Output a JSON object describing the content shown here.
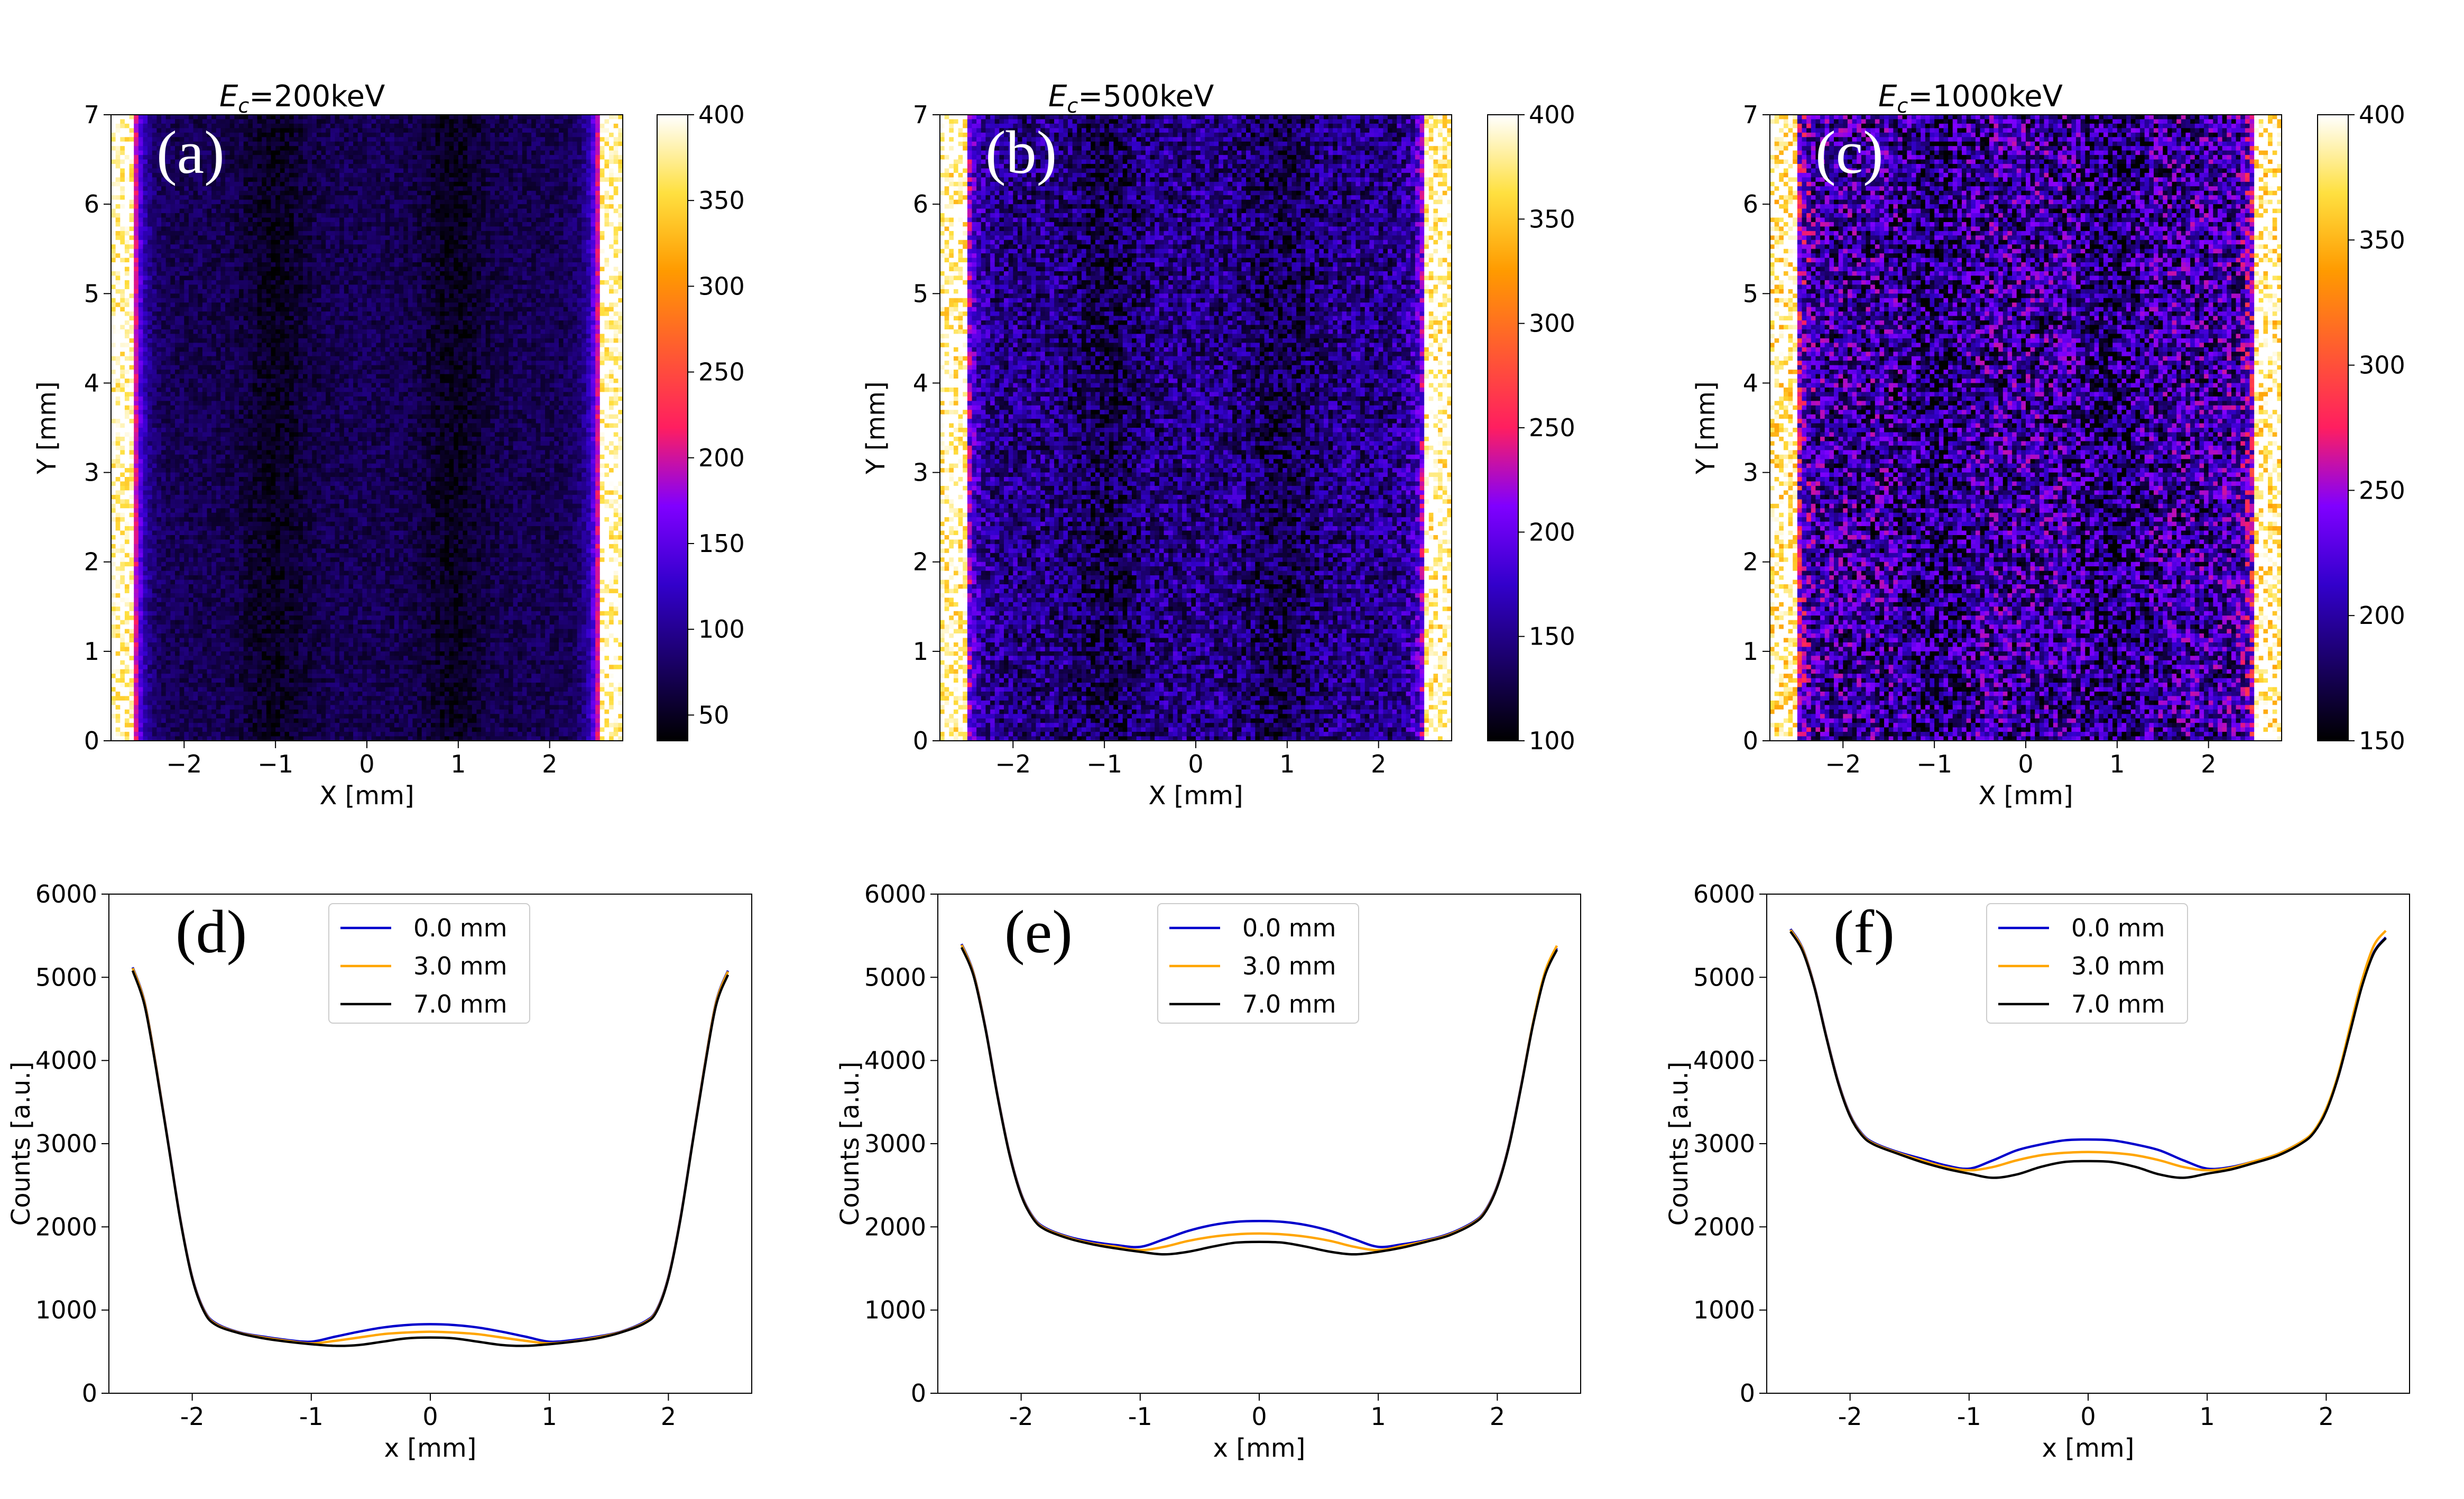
{
  "chart_data": [
    {
      "type": "heatmap",
      "panel_label": "(a)",
      "title_prefix": "E",
      "title_sub": "c",
      "title_rest": "=200keV",
      "xlabel": "X [mm]",
      "ylabel": "Y [mm]",
      "xlim": [
        -2.8,
        2.8
      ],
      "ylim": [
        0,
        7
      ],
      "xticks": [
        -2,
        -1,
        0,
        1,
        2
      ],
      "xtick_labels": [
        "−2",
        "−1",
        "0",
        "1",
        "2"
      ],
      "yticks": [
        0,
        1,
        2,
        3,
        4,
        5,
        6,
        7
      ],
      "ytick_labels": [
        "0",
        "1",
        "2",
        "3",
        "4",
        "5",
        "6",
        "7"
      ],
      "colorbar": {
        "cmap": "gnuplot2",
        "vmin": 35,
        "vmax": 400,
        "ticks": [
          50,
          100,
          150,
          200,
          250,
          300,
          350,
          400
        ],
        "tick_labels": [
          "50",
          "100",
          "150",
          "200",
          "250",
          "300",
          "350",
          "400"
        ]
      },
      "edge_x": 2.55,
      "center_level": 72,
      "dip_level": 50,
      "edge_peak": 240,
      "seed": 11
    },
    {
      "type": "heatmap",
      "panel_label": "(b)",
      "title_prefix": "E",
      "title_sub": "c",
      "title_rest": "=500keV",
      "xlabel": "X [mm]",
      "ylabel": "Y [mm]",
      "xlim": [
        -2.8,
        2.8
      ],
      "ylim": [
        0,
        7
      ],
      "xticks": [
        -2,
        -1,
        0,
        1,
        2
      ],
      "xtick_labels": [
        "−2",
        "−1",
        "0",
        "1",
        "2"
      ],
      "yticks": [
        0,
        1,
        2,
        3,
        4,
        5,
        6,
        7
      ],
      "ytick_labels": [
        "0",
        "1",
        "2",
        "3",
        "4",
        "5",
        "6",
        "7"
      ],
      "colorbar": {
        "cmap": "gnuplot2",
        "vmin": 100,
        "vmax": 400,
        "ticks": [
          100,
          150,
          200,
          250,
          300,
          350,
          400
        ],
        "tick_labels": [
          "100",
          "150",
          "200",
          "250",
          "300",
          "350",
          "400"
        ]
      },
      "edge_x": 2.5,
      "center_level": 150,
      "dip_level": 128,
      "edge_peak": 230,
      "seed": 23
    },
    {
      "type": "heatmap",
      "panel_label": "(c)",
      "title_prefix": "E",
      "title_sub": "c",
      "title_rest": "=1000keV",
      "xlabel": "X [mm]",
      "ylabel": "Y [mm]",
      "xlim": [
        -2.8,
        2.8
      ],
      "ylim": [
        0,
        7
      ],
      "xticks": [
        -2,
        -1,
        0,
        1,
        2
      ],
      "xtick_labels": [
        "−2",
        "−1",
        "0",
        "1",
        "2"
      ],
      "yticks": [
        0,
        1,
        2,
        3,
        4,
        5,
        6,
        7
      ],
      "ytick_labels": [
        "0",
        "1",
        "2",
        "3",
        "4",
        "5",
        "6",
        "7"
      ],
      "colorbar": {
        "cmap": "gnuplot2",
        "vmin": 150,
        "vmax": 400,
        "ticks": [
          150,
          200,
          250,
          300,
          350,
          400
        ],
        "tick_labels": [
          "150",
          "200",
          "250",
          "300",
          "350",
          "400"
        ]
      },
      "edge_x": 2.5,
      "center_level": 205,
      "dip_level": 185,
      "edge_peak": 265,
      "seed": 37
    },
    {
      "type": "line",
      "panel_label": "(d)",
      "xlabel": "x [mm]",
      "ylabel": "Counts [a.u.]",
      "xlim": [
        -2.7,
        2.7
      ],
      "ylim": [
        0,
        6000
      ],
      "xticks": [
        -2,
        -1,
        0,
        1,
        2
      ],
      "xtick_labels": [
        "-2",
        "-1",
        "0",
        "1",
        "2"
      ],
      "yticks": [
        0,
        1000,
        2000,
        3000,
        4000,
        5000,
        6000
      ],
      "ytick_labels": [
        "0",
        "1000",
        "2000",
        "3000",
        "4000",
        "5000",
        "6000"
      ],
      "legend_position": "top-center",
      "x": [
        -2.5,
        -2.4,
        -2.3,
        -2.2,
        -2.1,
        -2.0,
        -1.9,
        -1.8,
        -1.6,
        -1.4,
        -1.2,
        -1.0,
        -0.8,
        -0.6,
        -0.4,
        -0.2,
        0.0,
        0.2,
        0.4,
        0.6,
        0.8,
        1.0,
        1.2,
        1.4,
        1.6,
        1.8,
        1.9,
        2.0,
        2.1,
        2.2,
        2.3,
        2.4,
        2.5
      ],
      "series": [
        {
          "name": "0.0 mm",
          "color": "#0000cc",
          "values": [
            5120,
            4700,
            3900,
            3000,
            2100,
            1400,
            1000,
            840,
            730,
            680,
            640,
            620,
            680,
            740,
            790,
            820,
            830,
            820,
            790,
            740,
            680,
            620,
            640,
            680,
            740,
            860,
            1000,
            1400,
            2100,
            3000,
            3900,
            4700,
            5080
          ]
        },
        {
          "name": "3.0 mm",
          "color": "#ffa500",
          "values": [
            5110,
            4690,
            3890,
            2990,
            2090,
            1390,
            990,
            830,
            725,
            670,
            630,
            600,
            630,
            670,
            710,
            730,
            740,
            730,
            710,
            670,
            630,
            600,
            625,
            670,
            735,
            850,
            990,
            1390,
            2090,
            2990,
            3890,
            4690,
            5070
          ]
        },
        {
          "name": "7.0 mm",
          "color": "#000000",
          "values": [
            5080,
            4660,
            3870,
            2980,
            2080,
            1380,
            980,
            820,
            720,
            660,
            620,
            590,
            570,
            580,
            620,
            660,
            670,
            660,
            620,
            580,
            570,
            590,
            620,
            660,
            730,
            840,
            980,
            1380,
            2080,
            2980,
            3870,
            4660,
            5030
          ]
        }
      ]
    },
    {
      "type": "line",
      "panel_label": "(e)",
      "xlabel": "x [mm]",
      "ylabel": "Counts [a.u.]",
      "xlim": [
        -2.7,
        2.7
      ],
      "ylim": [
        0,
        6000
      ],
      "xticks": [
        -2,
        -1,
        0,
        1,
        2
      ],
      "xtick_labels": [
        "-2",
        "-1",
        "0",
        "1",
        "2"
      ],
      "yticks": [
        0,
        1000,
        2000,
        3000,
        4000,
        5000,
        6000
      ],
      "ytick_labels": [
        "0",
        "1000",
        "2000",
        "3000",
        "4000",
        "5000",
        "6000"
      ],
      "legend_position": "top-center",
      "x": [
        -2.5,
        -2.4,
        -2.3,
        -2.2,
        -2.1,
        -2.0,
        -1.9,
        -1.8,
        -1.6,
        -1.4,
        -1.2,
        -1.0,
        -0.8,
        -0.6,
        -0.4,
        -0.2,
        0.0,
        0.2,
        0.4,
        0.6,
        0.8,
        1.0,
        1.2,
        1.4,
        1.6,
        1.8,
        1.9,
        2.0,
        2.1,
        2.2,
        2.3,
        2.4,
        2.5
      ],
      "series": [
        {
          "name": "0.0 mm",
          "color": "#0000cc",
          "values": [
            5400,
            5050,
            4400,
            3600,
            2900,
            2400,
            2120,
            1990,
            1880,
            1820,
            1780,
            1760,
            1850,
            1950,
            2020,
            2060,
            2070,
            2060,
            2020,
            1950,
            1850,
            1760,
            1790,
            1840,
            1920,
            2060,
            2200,
            2500,
            3000,
            3700,
            4450,
            5050,
            5350
          ]
        },
        {
          "name": "3.0 mm",
          "color": "#ffa500",
          "values": [
            5390,
            5040,
            4390,
            3590,
            2890,
            2390,
            2110,
            1980,
            1870,
            1800,
            1760,
            1720,
            1760,
            1830,
            1880,
            1910,
            1920,
            1910,
            1880,
            1830,
            1760,
            1720,
            1770,
            1830,
            1910,
            2050,
            2190,
            2490,
            2990,
            3690,
            4450,
            5060,
            5380
          ]
        },
        {
          "name": "7.0 mm",
          "color": "#000000",
          "values": [
            5360,
            5020,
            4380,
            3580,
            2880,
            2380,
            2100,
            1970,
            1860,
            1790,
            1740,
            1700,
            1670,
            1700,
            1760,
            1810,
            1820,
            1810,
            1760,
            1700,
            1670,
            1700,
            1750,
            1820,
            1900,
            2040,
            2180,
            2480,
            2980,
            3680,
            4430,
            5020,
            5330
          ]
        }
      ]
    },
    {
      "type": "line",
      "panel_label": "(f)",
      "xlabel": "x [mm]",
      "ylabel": "Counts [a.u.]",
      "xlim": [
        -2.7,
        2.7
      ],
      "ylim": [
        0,
        6000
      ],
      "xticks": [
        -2,
        -1,
        0,
        1,
        2
      ],
      "xtick_labels": [
        "-2",
        "-1",
        "0",
        "1",
        "2"
      ],
      "yticks": [
        0,
        1000,
        2000,
        3000,
        4000,
        5000,
        6000
      ],
      "ytick_labels": [
        "0",
        "1000",
        "2000",
        "3000",
        "4000",
        "5000",
        "6000"
      ],
      "legend_position": "top-center",
      "x": [
        -2.5,
        -2.4,
        -2.3,
        -2.2,
        -2.1,
        -2.0,
        -1.9,
        -1.8,
        -1.6,
        -1.4,
        -1.2,
        -1.0,
        -0.8,
        -0.6,
        -0.4,
        -0.2,
        0.0,
        0.2,
        0.4,
        0.6,
        0.8,
        1.0,
        1.2,
        1.4,
        1.6,
        1.8,
        1.9,
        2.0,
        2.1,
        2.2,
        2.3,
        2.4,
        2.5
      ],
      "series": [
        {
          "name": "0.0 mm",
          "color": "#0000cc",
          "values": [
            5580,
            5350,
            4900,
            4300,
            3750,
            3350,
            3120,
            3010,
            2900,
            2820,
            2740,
            2700,
            2800,
            2920,
            2990,
            3040,
            3050,
            3040,
            2990,
            2920,
            2800,
            2700,
            2720,
            2790,
            2880,
            3030,
            3150,
            3400,
            3800,
            4350,
            4900,
            5300,
            5480
          ]
        },
        {
          "name": "3.0 mm",
          "color": "#ffa500",
          "values": [
            5570,
            5340,
            4890,
            4290,
            3740,
            3340,
            3110,
            3000,
            2890,
            2800,
            2720,
            2680,
            2720,
            2800,
            2860,
            2890,
            2900,
            2890,
            2860,
            2800,
            2720,
            2680,
            2710,
            2790,
            2880,
            3030,
            3160,
            3420,
            3830,
            4400,
            4960,
            5380,
            5560
          ]
        },
        {
          "name": "7.0 mm",
          "color": "#000000",
          "values": [
            5550,
            5320,
            4880,
            4280,
            3730,
            3330,
            3100,
            2990,
            2880,
            2780,
            2700,
            2640,
            2590,
            2630,
            2720,
            2780,
            2790,
            2780,
            2720,
            2630,
            2590,
            2640,
            2690,
            2770,
            2860,
            3010,
            3140,
            3390,
            3800,
            4340,
            4890,
            5290,
            5470
          ]
        }
      ]
    }
  ]
}
